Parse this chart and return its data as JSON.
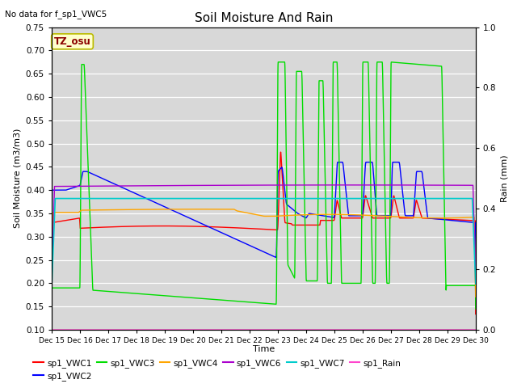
{
  "title": "Soil Moisture And Rain",
  "top_left_text": "No data for f_sp1_VWC5",
  "annotation_text": "TZ_osu",
  "xlabel": "Time",
  "ylabel_left": "Soil Moisture (m3/m3)",
  "ylabel_right": "Rain (mm)",
  "ylim_left": [
    0.1,
    0.75
  ],
  "ylim_right": [
    0.0,
    1.0
  ],
  "xlim": [
    0,
    15
  ],
  "xtick_labels": [
    "Dec 15",
    "Dec 16",
    "Dec 17",
    "Dec 18",
    "Dec 19",
    "Dec 20",
    "Dec 21",
    "Dec 22",
    "Dec 23",
    "Dec 24",
    "Dec 25",
    "Dec 26",
    "Dec 27",
    "Dec 28",
    "Dec 29",
    "Dec 30"
  ],
  "xtick_positions": [
    0,
    1,
    2,
    3,
    4,
    5,
    6,
    7,
    8,
    9,
    10,
    11,
    12,
    13,
    14,
    15
  ],
  "background_color": "#d8d8d8",
  "figure_color": "#ffffff",
  "colors": {
    "VWC1": "#ff0000",
    "VWC2": "#0000ff",
    "VWC3": "#00dd00",
    "VWC4": "#ffa500",
    "VWC6": "#aa00cc",
    "VWC7": "#00cccc",
    "Rain": "#ff44cc"
  }
}
